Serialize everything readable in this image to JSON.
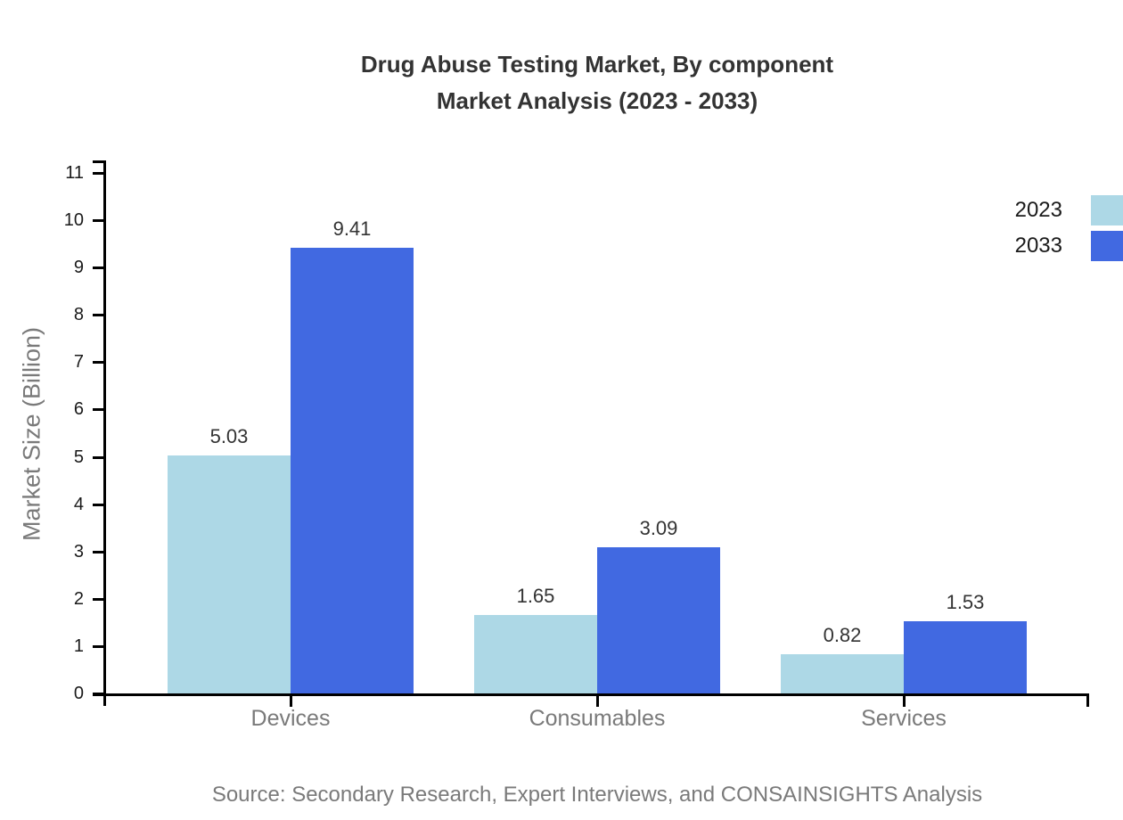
{
  "title": {
    "line1": "Drug Abuse Testing Market, By component",
    "line2": "Market Analysis (2023 - 2033)"
  },
  "legend": {
    "items": [
      {
        "label": "2023",
        "color": "#ADD8E6"
      },
      {
        "label": "2033",
        "color": "#4169E1"
      }
    ]
  },
  "source": "Source: Secondary Research, Expert Interviews, and CONSAINSIGHTS Analysis",
  "colors": {
    "series_2023": "#ADD8E6",
    "series_2033": "#4169E1",
    "title_text": "#333333",
    "axis_line": "#000000",
    "tick_label": "#1a1a1a",
    "muted_label": "#7a7a7a",
    "background": "#ffffff"
  },
  "chart_data": {
    "type": "bar",
    "title": "Drug Abuse Testing Market, By component Market Analysis (2023 - 2033)",
    "categories": [
      "Devices",
      "Consumables",
      "Services"
    ],
    "series": [
      {
        "name": "2023",
        "color": "#ADD8E6",
        "values": [
          5.03,
          1.65,
          0.82
        ]
      },
      {
        "name": "2033",
        "color": "#4169E1",
        "values": [
          9.41,
          3.09,
          1.53
        ]
      }
    ],
    "xlabel": "",
    "ylabel": "Market Size (Billion)",
    "ylim": [
      0,
      11
    ],
    "ytick_step": 1,
    "grid": false,
    "legend_position": "top-right",
    "value_labels": true,
    "value_label_decimals": 2
  }
}
